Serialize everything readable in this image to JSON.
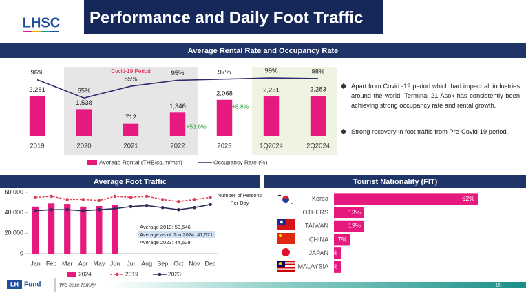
{
  "header": {
    "logo": "LHSC",
    "title": "Performance and Daily Foot Traffic"
  },
  "chart_data": [
    {
      "type": "bar",
      "title": "Average Rental Rate and Occupancy Rate",
      "categories": [
        "2019",
        "2020",
        "2021",
        "2022",
        "2023",
        "1Q2024",
        "2Q2024"
      ],
      "series": [
        {
          "name": "Average Rental (THB/sq.m/mth)",
          "color": "#e6197e",
          "values": [
            2281,
            1538,
            712,
            1346,
            2068,
            2251,
            2283
          ],
          "value_labels": [
            "2,281",
            "1,538",
            "712",
            "1,346",
            "2,068",
            "2,251",
            "2,283"
          ]
        },
        {
          "name": "Occupancy Rate (%)",
          "color": "#2b2d6e",
          "type": "line",
          "axis": "y2",
          "values": [
            96,
            65,
            85,
            95,
            97,
            99,
            98
          ],
          "value_labels": [
            "96%",
            "65%",
            "85%",
            "95%",
            "97%",
            "99%",
            "98%"
          ]
        }
      ],
      "ylim": [
        0,
        4000
      ],
      "y2lim": [
        0,
        120
      ],
      "annotations": [
        "Covid-19 Period",
        "+53.6%",
        "+8.8%"
      ],
      "legend": "bottom"
    },
    {
      "type": "bar",
      "title": "Average Foot Traffic",
      "categories": [
        "Jan",
        "Feb",
        "Mar",
        "Apr",
        "May",
        "Jun",
        "Jul",
        "Aug",
        "Sep",
        "Oct",
        "Nov",
        "Dec"
      ],
      "series": [
        {
          "name": "2024",
          "color": "#e6197e",
          "values": [
            46000,
            49000,
            48500,
            46000,
            46500,
            47500,
            null,
            null,
            null,
            null,
            null,
            null
          ]
        },
        {
          "name": "2019",
          "color": "#e0405a",
          "type": "line",
          "dashed": true,
          "values": [
            55000,
            56000,
            53000,
            53000,
            52000,
            56000,
            55000,
            56000,
            53000,
            51000,
            53000,
            55000
          ]
        },
        {
          "name": "2023",
          "color": "#2b2d5b",
          "type": "line",
          "values": [
            42000,
            43000,
            43000,
            42000,
            43000,
            44000,
            46000,
            47000,
            45000,
            43000,
            45000,
            48000
          ]
        }
      ],
      "ylim": [
        0,
        60000
      ],
      "yticks": [
        0,
        {
          "value": 20000,
          "label": "20,000"
        },
        {
          "value": 40000,
          "label": "40,000"
        },
        {
          "value": 60000,
          "label": "60,000"
        }
      ],
      "annotations": [
        "Number of Persons Per Day",
        "Average 2019: 53,646",
        "Average as of Jun 2024: 47,521",
        "Average 2023: 44,528"
      ],
      "legend": "bottom"
    },
    {
      "type": "barh",
      "title": "Tourist Nationality (FIT)",
      "categories": [
        "Korea",
        "OTHERS",
        "TAIWAN",
        "CHINA",
        "JAPAN",
        "MALAYSIA"
      ],
      "values": [
        62,
        13,
        13,
        7,
        3,
        3
      ],
      "value_labels": [
        "62%",
        "13%",
        "13%",
        "7%",
        "3%",
        "3%"
      ],
      "color": "#e6197e",
      "xlim": [
        0,
        80
      ]
    }
  ],
  "bullets": [
    "Apart from Covid -19 period which had impact all industries around the world, Terminal 21 Asok has consistently been achieving strong occupancy rate and rental growth.",
    "Strong recovery in foot traffic from Pre-Covid-19 period."
  ],
  "footer": {
    "logo_lh": "LH",
    "logo_fund": "Fund",
    "slogan": "We care family",
    "page": "15"
  }
}
